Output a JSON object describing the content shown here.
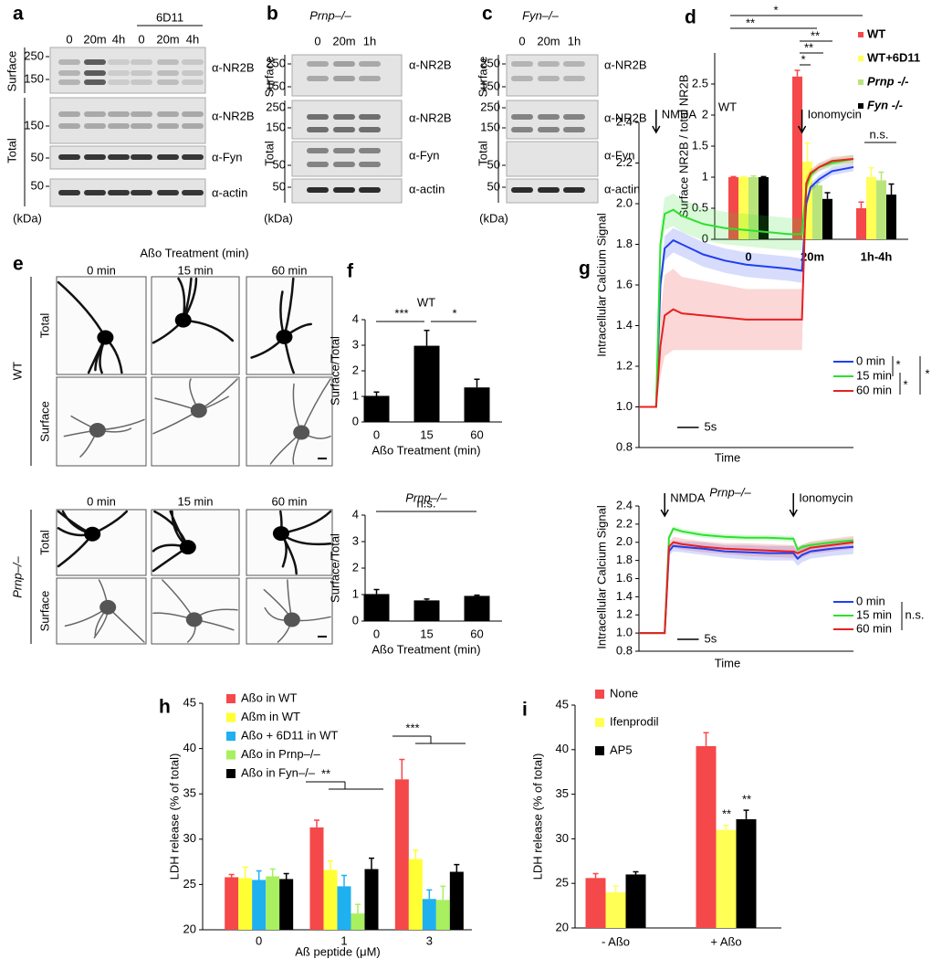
{
  "blots": [
    {
      "panel": "a",
      "group_label": "6D11",
      "lanes": [
        "0",
        "20m",
        "4h",
        "0",
        "20m",
        "4h"
      ],
      "sections": [
        "Surface",
        "Total"
      ],
      "markers": [
        "250",
        "150",
        "150",
        "50",
        "50"
      ],
      "antibodies": [
        "α-NR2B",
        "α-NR2B",
        "α-Fyn",
        "α-actin"
      ],
      "unit": "(kDa)"
    },
    {
      "panel": "b",
      "title": "Prnp–/–",
      "lanes": [
        "0",
        "20m",
        "1h"
      ],
      "sections": [
        "Surface",
        "Total"
      ],
      "markers": [
        "250",
        "150",
        "250",
        "150",
        "50",
        "50"
      ],
      "antibodies": [
        "α-NR2B",
        "α-NR2B",
        "α-Fyn",
        "α-actin"
      ],
      "unit": "(kDa)"
    },
    {
      "panel": "c",
      "title": "Fyn–/–",
      "lanes": [
        "0",
        "20m",
        "1h"
      ],
      "sections": [
        "Surface",
        "Total"
      ],
      "markers": [
        "250",
        "150",
        "250",
        "150",
        "50",
        "50"
      ],
      "antibodies": [
        "α-NR2B",
        "α-NR2B",
        "α-Fyn",
        "α-actin"
      ],
      "unit": "(kDa)"
    }
  ],
  "micrographs": {
    "panel": "e",
    "title": "Aßo Treatment (min)",
    "groups": [
      {
        "label": "WT",
        "columns": [
          "0 min",
          "15 min",
          "60 min"
        ],
        "rows": [
          "Total",
          "Surface"
        ]
      },
      {
        "label": "Prnp–/–",
        "columns": [
          "0 min",
          "15 min",
          "60 min"
        ],
        "rows": [
          "Total",
          "Surface"
        ]
      }
    ]
  },
  "chart_data": [
    {
      "type": "bar",
      "panel": "d",
      "ylabel": "Surface NR2B / total NR2B",
      "categories": [
        "0",
        "20m",
        "1h-4h"
      ],
      "series": [
        {
          "name": "WT",
          "color": "#f5484a",
          "values": [
            1,
            2.62,
            0.5
          ],
          "errors": [
            0.01,
            0.1,
            0.1
          ]
        },
        {
          "name": "WT+6D11",
          "color": "#ffff55",
          "values": [
            1,
            1.25,
            1.0
          ],
          "errors": [
            0.01,
            0.3,
            0.15
          ]
        },
        {
          "name": "Prnp -/-",
          "color": "#b9e47c",
          "values": [
            1,
            0.87,
            0.95
          ],
          "errors": [
            0.02,
            0.05,
            0.13
          ]
        },
        {
          "name": "Fyn -/-",
          "color": "#000000",
          "values": [
            1,
            0.65,
            0.72
          ],
          "errors": [
            0.01,
            0.1,
            0.17
          ]
        }
      ],
      "ylim": [
        0,
        3
      ],
      "yticks": [
        0,
        0.5,
        1,
        1.5,
        2,
        2.5
      ],
      "annotations": [
        "*",
        "**",
        "**",
        "**",
        "*",
        "n.s."
      ]
    },
    {
      "type": "bar",
      "panel": "f",
      "title": "WT",
      "ylabel": "Surface/Total",
      "xlabel": "Aßo Treatment (min)",
      "categories": [
        "0",
        "15",
        "60"
      ],
      "values": [
        1.02,
        2.98,
        1.35
      ],
      "errors": [
        0.15,
        0.6,
        0.32
      ],
      "color": "#000000",
      "ylim": [
        0,
        4
      ],
      "yticks": [
        0,
        1,
        2,
        3,
        4
      ],
      "annotations": [
        "***",
        "*"
      ]
    },
    {
      "type": "bar",
      "title": "Prnp–/–",
      "ylabel": "Surface/Total",
      "xlabel": "Aßo Treatment (min)",
      "categories": [
        "0",
        "15",
        "60"
      ],
      "values": [
        1.02,
        0.78,
        0.95
      ],
      "errors": [
        0.17,
        0.05,
        0.03
      ],
      "color": "#000000",
      "ylim": [
        0,
        4
      ],
      "yticks": [
        0,
        1,
        2,
        3,
        4
      ],
      "annotations": [
        "n.s."
      ]
    },
    {
      "type": "line",
      "panel": "g",
      "title": "WT",
      "ylabel": "Intracellular Calcium Signal",
      "xlabel": "Time",
      "x": [
        0,
        2,
        4,
        5,
        6,
        8,
        10,
        15,
        20,
        25,
        30,
        35,
        38,
        39,
        40,
        42,
        45,
        50
      ],
      "xlim": [
        0,
        50
      ],
      "ylim": [
        0.8,
        2.4
      ],
      "yticks": [
        0.8,
        {
          "value": 1,
          "label": "1.0"
        },
        1.2,
        1.4,
        1.6,
        1.8,
        {
          "value": 2,
          "label": "2.0"
        },
        2.2,
        2.4
      ],
      "scale_bar": {
        "value": 5,
        "label": "5s"
      },
      "events": [
        {
          "x": 4,
          "label": "NMDA"
        },
        {
          "x": 38,
          "label": "Ionomycin"
        }
      ],
      "series": [
        {
          "name": "0 min",
          "color": "#1f3ff0",
          "values": [
            1.0,
            1.0,
            1.0,
            1.6,
            1.78,
            1.82,
            1.8,
            1.75,
            1.72,
            1.7,
            1.69,
            1.68,
            1.67,
            2.0,
            2.08,
            2.12,
            2.16,
            2.18
          ],
          "errors": [
            0,
            0,
            0,
            0.05,
            0.06,
            0.06,
            0.06,
            0.06,
            0.06,
            0.06,
            0.06,
            0.06,
            0.06,
            0.03,
            0.02,
            0.02,
            0.02,
            0.02
          ]
        },
        {
          "name": "15 min",
          "color": "#2ee02e",
          "values": [
            1.0,
            1.0,
            1.0,
            1.8,
            1.95,
            1.97,
            1.94,
            1.9,
            1.88,
            1.87,
            1.86,
            1.85,
            1.85,
            2.08,
            2.14,
            2.18,
            2.2,
            2.22
          ],
          "errors": [
            0,
            0,
            0,
            0.08,
            0.08,
            0.08,
            0.08,
            0.08,
            0.08,
            0.08,
            0.08,
            0.08,
            0.08,
            0.03,
            0.02,
            0.02,
            0.02,
            0.02
          ]
        },
        {
          "name": "60 min",
          "color": "#e82020",
          "values": [
            1.0,
            1.0,
            1.0,
            1.3,
            1.45,
            1.48,
            1.46,
            1.45,
            1.44,
            1.43,
            1.43,
            1.43,
            1.43,
            2.1,
            2.15,
            2.18,
            2.21,
            2.22
          ],
          "errors": [
            0,
            0,
            0,
            0.15,
            0.2,
            0.2,
            0.18,
            0.17,
            0.16,
            0.15,
            0.15,
            0.15,
            0.15,
            0.03,
            0.02,
            0.02,
            0.02,
            0.02
          ]
        }
      ],
      "annotations": [
        "*",
        "*",
        "*"
      ]
    },
    {
      "type": "line",
      "title": "Prnp–/–",
      "ylabel": "Intracellular Calcium Signal",
      "xlabel": "Time",
      "x": [
        0,
        2,
        4,
        6,
        7,
        8,
        10,
        15,
        20,
        25,
        30,
        35,
        36,
        37,
        38,
        40,
        45,
        50
      ],
      "xlim": [
        0,
        50
      ],
      "ylim": [
        0.8,
        2.4
      ],
      "yticks": [
        0.8,
        {
          "value": 1,
          "label": "1.0"
        },
        1.2,
        1.4,
        1.6,
        1.8,
        {
          "value": 2,
          "label": "2.0"
        },
        2.2,
        2.4
      ],
      "scale_bar": {
        "value": 5,
        "label": "5s"
      },
      "events": [
        {
          "x": 6,
          "label": "NMDA"
        },
        {
          "x": 36,
          "label": "Ionomycin"
        }
      ],
      "series": [
        {
          "name": "0 min",
          "color": "#1f3ff0",
          "values": [
            1.0,
            1.0,
            1.0,
            1.0,
            1.9,
            1.96,
            1.95,
            1.93,
            1.9,
            1.89,
            1.88,
            1.88,
            1.88,
            1.82,
            1.86,
            1.9,
            1.93,
            1.95
          ],
          "errors": [
            0,
            0,
            0,
            0,
            0.05,
            0.06,
            0.06,
            0.07,
            0.07,
            0.08,
            0.08,
            0.08,
            0.08,
            0.08,
            0.08,
            0.08,
            0.08,
            0.08
          ]
        },
        {
          "name": "15 min",
          "color": "#2ee02e",
          "values": [
            1.0,
            1.0,
            1.0,
            1.0,
            2.05,
            2.15,
            2.12,
            2.08,
            2.06,
            2.05,
            2.05,
            2.04,
            2.04,
            1.92,
            1.95,
            1.97,
            2.0,
            2.02
          ],
          "errors": [
            0,
            0,
            0,
            0,
            0.03,
            0.03,
            0.03,
            0.03,
            0.03,
            0.03,
            0.03,
            0.03,
            0.03,
            0.03,
            0.03,
            0.03,
            0.03,
            0.03
          ]
        },
        {
          "name": "60 min",
          "color": "#e82020",
          "values": [
            1.0,
            1.0,
            1.0,
            1.0,
            1.95,
            2.0,
            1.98,
            1.95,
            1.93,
            1.92,
            1.91,
            1.9,
            1.9,
            1.88,
            1.9,
            1.94,
            1.97,
            2.0
          ],
          "errors": [
            0,
            0,
            0,
            0,
            0.05,
            0.06,
            0.06,
            0.06,
            0.06,
            0.07,
            0.07,
            0.07,
            0.07,
            0.07,
            0.07,
            0.07,
            0.07,
            0.07
          ]
        }
      ],
      "annotations": [
        "n.s."
      ]
    },
    {
      "type": "bar",
      "panel": "h",
      "ylabel": "LDH release (% of total)",
      "xlabel": "Aß peptide (μM)",
      "categories": [
        "0",
        "1",
        "3"
      ],
      "series": [
        {
          "name": "Aßo in WT",
          "color": "#f5484a",
          "values": [
            25.8,
            31.3,
            36.6
          ],
          "errors": [
            0.3,
            0.8,
            2.2
          ]
        },
        {
          "name": "Aßm in WT",
          "color": "#ffff33",
          "values": [
            25.7,
            26.6,
            27.8
          ],
          "errors": [
            1.2,
            1.0,
            1.0
          ]
        },
        {
          "name": "Aßo + 6D11 in WT",
          "color": "#1fb0f0",
          "values": [
            25.5,
            24.8,
            23.4
          ],
          "errors": [
            1.0,
            1.2,
            1.0
          ]
        },
        {
          "name": "Aßo in Prnp–/–",
          "color": "#a8f060",
          "values": [
            25.9,
            21.8,
            23.3
          ],
          "errors": [
            0.8,
            1.0,
            1.5
          ]
        },
        {
          "name": "Aßo in Fyn–/–",
          "color": "#000000",
          "values": [
            25.6,
            26.7,
            26.4
          ],
          "errors": [
            0.6,
            1.2,
            0.8
          ]
        }
      ],
      "ylim": [
        20,
        45
      ],
      "yticks": [
        20,
        25,
        30,
        35,
        40,
        45
      ],
      "annotations": [
        "**",
        "***"
      ]
    },
    {
      "type": "bar",
      "panel": "i",
      "ylabel": "LDH release (% of total)",
      "categories": [
        "- Aßo",
        "+ Aßo"
      ],
      "series": [
        {
          "name": "None",
          "color": "#f5484a",
          "values": [
            25.6,
            40.4
          ],
          "errors": [
            0.5,
            1.5
          ]
        },
        {
          "name": "Ifenprodil",
          "color": "#ffff55",
          "values": [
            24.0,
            31.0
          ],
          "errors": [
            0.7,
            0.5
          ]
        },
        {
          "name": "AP5",
          "color": "#000000",
          "values": [
            26.0,
            32.2
          ],
          "errors": [
            0.3,
            1.0
          ]
        }
      ],
      "ylim": [
        20,
        45
      ],
      "yticks": [
        20,
        25,
        30,
        35,
        40,
        45
      ],
      "annotations": [
        "**",
        "**"
      ]
    }
  ]
}
